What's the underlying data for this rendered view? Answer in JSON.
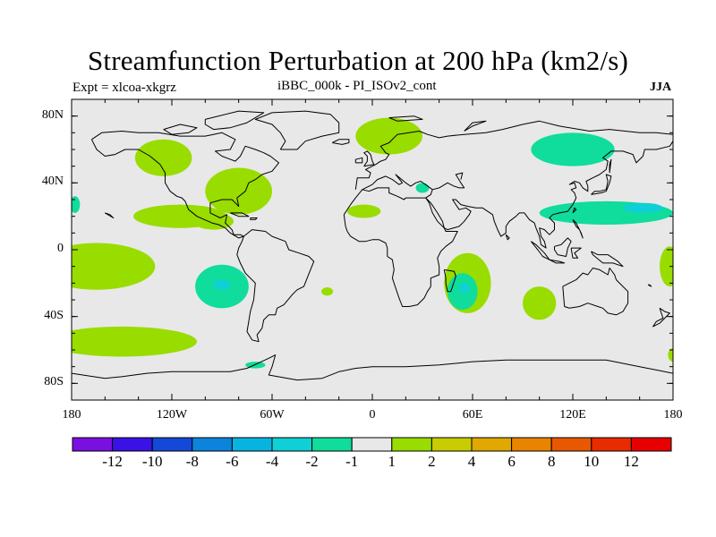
{
  "title": "Streamfunction Perturbation at 200 hPa (km2/s)",
  "experiment_label": "Expt = xlcoa-xkgrz",
  "comparison_label": "iBBC_000k - PI_ISOv2_cont",
  "season_label": "JJA",
  "map": {
    "projection": "cylindrical-equidistant",
    "lon_range": [
      -180,
      180
    ],
    "lat_range": [
      -90,
      90
    ],
    "background_color": "#e8e8e8",
    "coastline_color": "#000000"
  },
  "lat_ticks": [
    {
      "value": 80,
      "label": "80N"
    },
    {
      "value": 40,
      "label": "40N"
    },
    {
      "value": 0,
      "label": "0"
    },
    {
      "value": -40,
      "label": "40S"
    },
    {
      "value": -80,
      "label": "80S"
    }
  ],
  "lon_ticks": [
    {
      "value": -180,
      "label": "180"
    },
    {
      "value": -120,
      "label": "120W"
    },
    {
      "value": -60,
      "label": "60W"
    },
    {
      "value": 0,
      "label": "0"
    },
    {
      "value": 60,
      "label": "60E"
    },
    {
      "value": 120,
      "label": "120E"
    },
    {
      "value": 180,
      "label": "180"
    }
  ],
  "colorbar": {
    "colors": [
      "#7a10e0",
      "#3a12e6",
      "#1448d8",
      "#0c84dc",
      "#07b4e0",
      "#0fd0d4",
      "#10dc9c",
      "#e8e8e8",
      "#99dc00",
      "#c8cc00",
      "#e0a800",
      "#e88400",
      "#e85800",
      "#e82c00",
      "#e80000"
    ],
    "labels": [
      "-12",
      "-10",
      "-8",
      "-6",
      "-4",
      "-2",
      "-1",
      "1",
      "2",
      "4",
      "6",
      "8",
      "10",
      "12"
    ]
  },
  "shaded_regions": [
    {
      "lon": -125,
      "lat": 55,
      "rx": 17,
      "ry": 11,
      "level": 2
    },
    {
      "lon": -80,
      "lat": 35,
      "rx": 20,
      "ry": 14,
      "level": 2
    },
    {
      "lon": -115,
      "lat": 20,
      "rx": 28,
      "ry": 7,
      "level": 2
    },
    {
      "lon": -95,
      "lat": 17,
      "rx": 12,
      "ry": 5,
      "level": 2
    },
    {
      "lon": -165,
      "lat": -10,
      "rx": 35,
      "ry": 14,
      "level": 2
    },
    {
      "lon": -150,
      "lat": -55,
      "rx": 45,
      "ry": 9,
      "level": 2
    },
    {
      "lon": 10,
      "lat": 68,
      "rx": 20,
      "ry": 11,
      "level": 2
    },
    {
      "lon": -5,
      "lat": 23,
      "rx": 10,
      "ry": 4,
      "level": 2
    },
    {
      "lon": -27,
      "lat": -25,
      "rx": 3.5,
      "ry": 2.5,
      "level": 2
    },
    {
      "lon": 100,
      "lat": -32,
      "rx": 10,
      "ry": 10,
      "level": 2
    },
    {
      "lon": 178,
      "lat": -10,
      "rx": 6,
      "ry": 12,
      "level": 2
    },
    {
      "lon": 180,
      "lat": -63,
      "rx": 3,
      "ry": 4,
      "level": 2
    },
    {
      "lon": -90,
      "lat": -22,
      "rx": 16,
      "ry": 13,
      "level": -1
    },
    {
      "lon": -90,
      "lat": -21,
      "rx": 5,
      "ry": 3,
      "level": -2
    },
    {
      "lon": 120,
      "lat": 60,
      "rx": 25,
      "ry": 10,
      "level": -1
    },
    {
      "lon": 140,
      "lat": 22,
      "rx": 40,
      "ry": 7,
      "level": -1
    },
    {
      "lon": 162,
      "lat": 25,
      "rx": 12,
      "ry": 3,
      "level": -2
    },
    {
      "lon": 30,
      "lat": 37,
      "rx": 4,
      "ry": 3,
      "level": -1
    },
    {
      "lon": 57,
      "lat": -20,
      "rx": 14,
      "ry": 18,
      "level": 2
    },
    {
      "lon": 54,
      "lat": -25,
      "rx": 9,
      "ry": 11,
      "level": -1
    },
    {
      "lon": 55,
      "lat": -23,
      "rx": 3,
      "ry": 3,
      "level": -2
    },
    {
      "lon": -178,
      "lat": 27,
      "rx": 3,
      "ry": 5,
      "level": -1
    },
    {
      "lon": -70,
      "lat": -69,
      "rx": 6,
      "ry": 2,
      "level": -1
    }
  ]
}
